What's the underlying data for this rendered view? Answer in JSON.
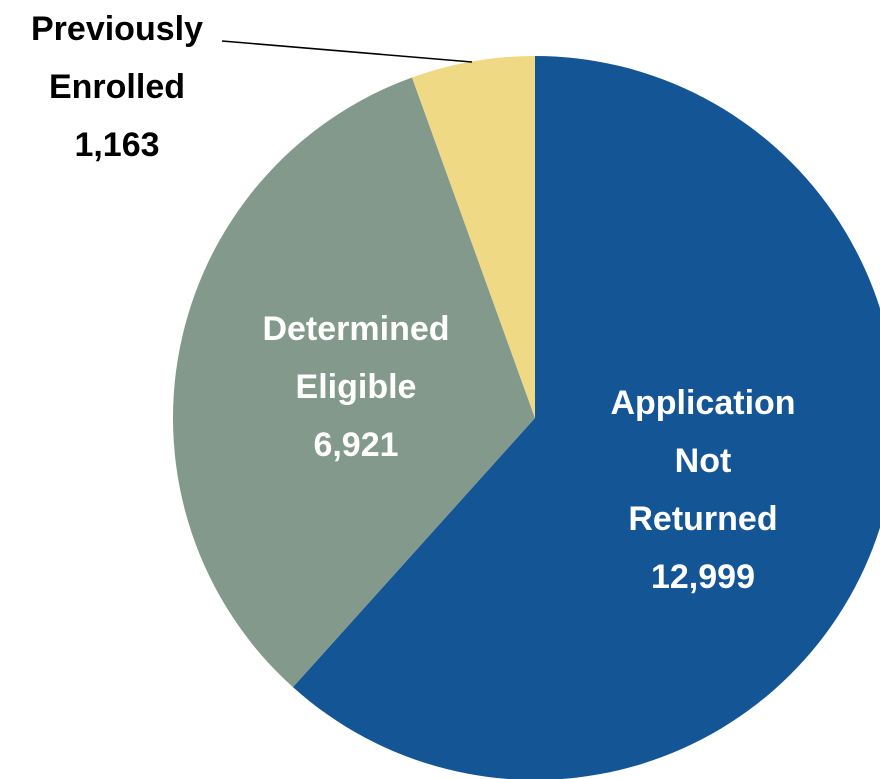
{
  "chart_data": {
    "type": "pie",
    "categories": [
      "Application\nNot Returned",
      "Determined\nEligible",
      "Previously\nEnrolled"
    ],
    "values": [
      12999,
      6921,
      1163
    ],
    "value_labels": [
      "12,999",
      "6,921",
      "1,163"
    ],
    "colors": [
      "#135595",
      "#82998c",
      "#efd984"
    ]
  }
}
